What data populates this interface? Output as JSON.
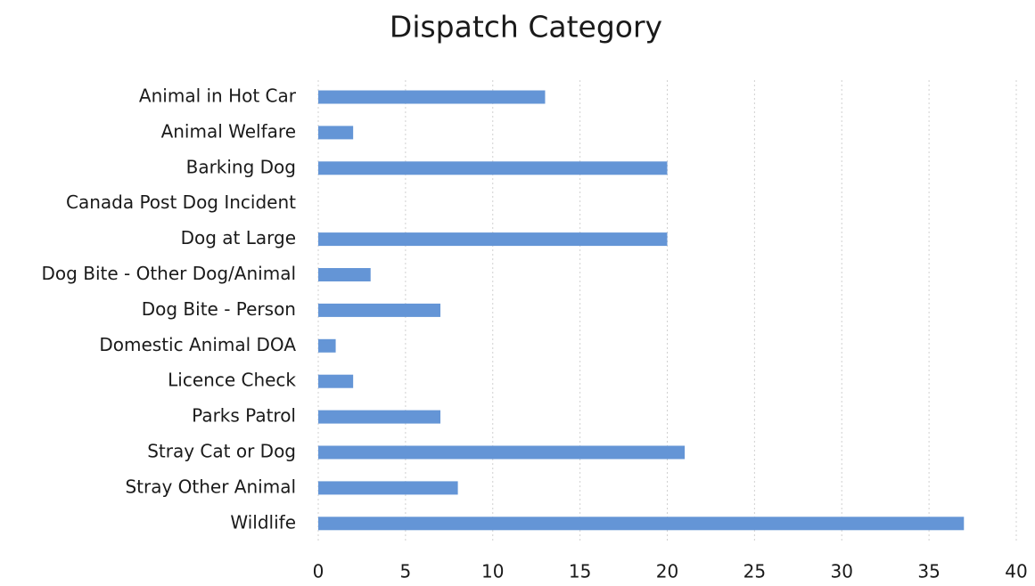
{
  "chart_data": {
    "type": "barh",
    "title": "Dispatch Category",
    "categories": [
      "Animal in Hot Car",
      "Animal Welfare",
      "Barking Dog",
      "Canada Post Dog Incident",
      "Dog at Large",
      "Dog Bite - Other Dog/Animal",
      "Dog Bite - Person",
      "Domestic Animal DOA",
      "Licence Check",
      "Parks Patrol",
      "Stray Cat or Dog",
      "Stray Other Animal",
      "Wildlife"
    ],
    "values": [
      13,
      2,
      20,
      0,
      20,
      3,
      7,
      1,
      2,
      7,
      21,
      8,
      37
    ],
    "color": "#6495d6",
    "xlim": [
      0,
      40
    ],
    "xticks": [
      0,
      5,
      10,
      15,
      20,
      25,
      30,
      35,
      40
    ],
    "grid": true
  }
}
